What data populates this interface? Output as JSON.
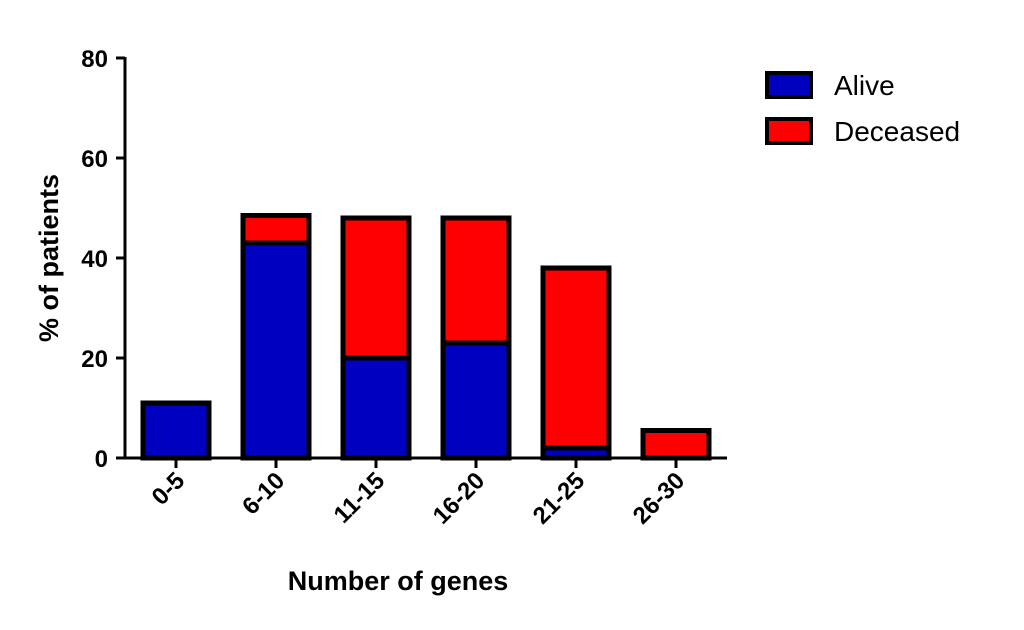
{
  "chart_data": {
    "type": "bar",
    "stacked": true,
    "categories": [
      "0-5",
      "6-10",
      "11-15",
      "16-20",
      "21-25",
      "26-30"
    ],
    "series": [
      {
        "name": "Alive",
        "color": "#0000c0",
        "values": [
          11,
          43,
          20,
          23,
          2,
          0
        ]
      },
      {
        "name": "Deceased",
        "color": "#ff0000",
        "values": [
          0,
          5.5,
          28,
          25,
          36,
          5.5
        ]
      }
    ],
    "title": "",
    "xlabel": "Number of genes",
    "ylabel": "% of patients",
    "ylim": [
      0,
      80
    ],
    "yticks": [
      "0",
      "20",
      "40",
      "60",
      "80"
    ],
    "grid": false,
    "legend_position": "top-right"
  }
}
